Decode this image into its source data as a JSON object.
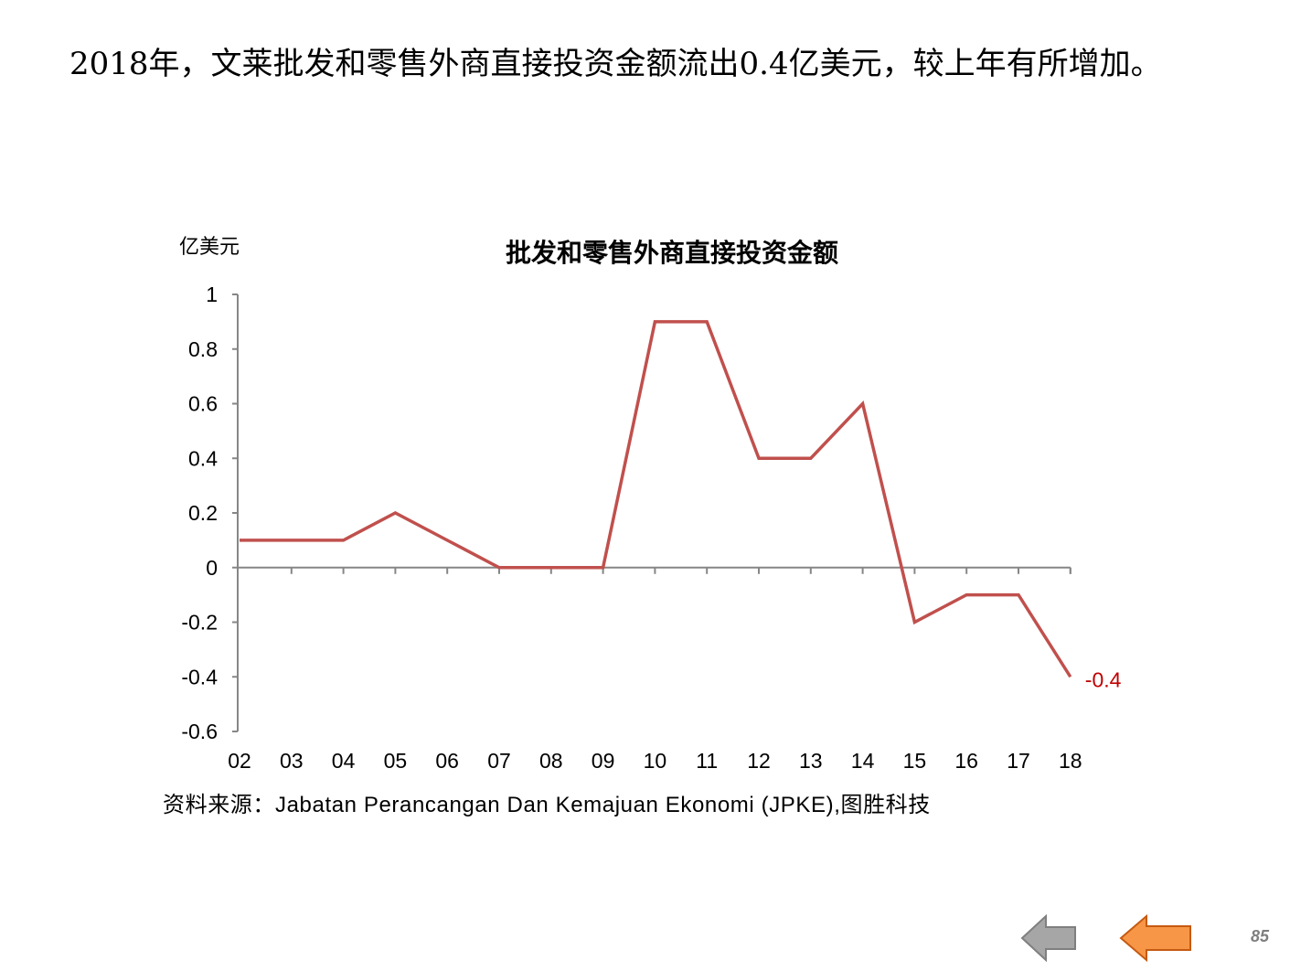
{
  "headline": "2018年，文莱批发和零售外商直接投资金额流出0.4亿美元，较上年有所增加。",
  "chart_data": {
    "type": "line",
    "title": "批发和零售外商直接投资金额",
    "ylabel": "亿美元",
    "xlabel": "",
    "categories": [
      "02",
      "03",
      "04",
      "05",
      "06",
      "07",
      "08",
      "09",
      "10",
      "11",
      "12",
      "13",
      "14",
      "15",
      "16",
      "17",
      "18"
    ],
    "series": [
      {
        "values": [
          0.1,
          0.1,
          0.1,
          0.2,
          0.1,
          0,
          0,
          0,
          0.9,
          0.9,
          0.4,
          0.4,
          0.6,
          -0.2,
          -0.1,
          -0.1,
          -0.4
        ]
      }
    ],
    "ylim": [
      -0.6,
      1
    ],
    "yticks": [
      1,
      0.8,
      0.6,
      0.4,
      0.2,
      0,
      -0.2,
      -0.4,
      -0.6
    ],
    "ytick_labels": [
      "1",
      "0.8",
      "0.6",
      "0.4",
      "0.2",
      "0",
      "-0.2",
      "-0.4",
      "-0.6"
    ],
    "data_labels": [
      {
        "category": "18",
        "label": "-0.4"
      }
    ],
    "grid": false,
    "line_color": "#C0504D",
    "data_label_color": "#C00000"
  },
  "source": "资料来源：Jabatan Perancangan Dan Kemajuan Ekonomi (JPKE),图胜科技",
  "nav": {
    "back_color": "#A6A6A6",
    "home_color": "#F79646"
  },
  "page_number": "85"
}
